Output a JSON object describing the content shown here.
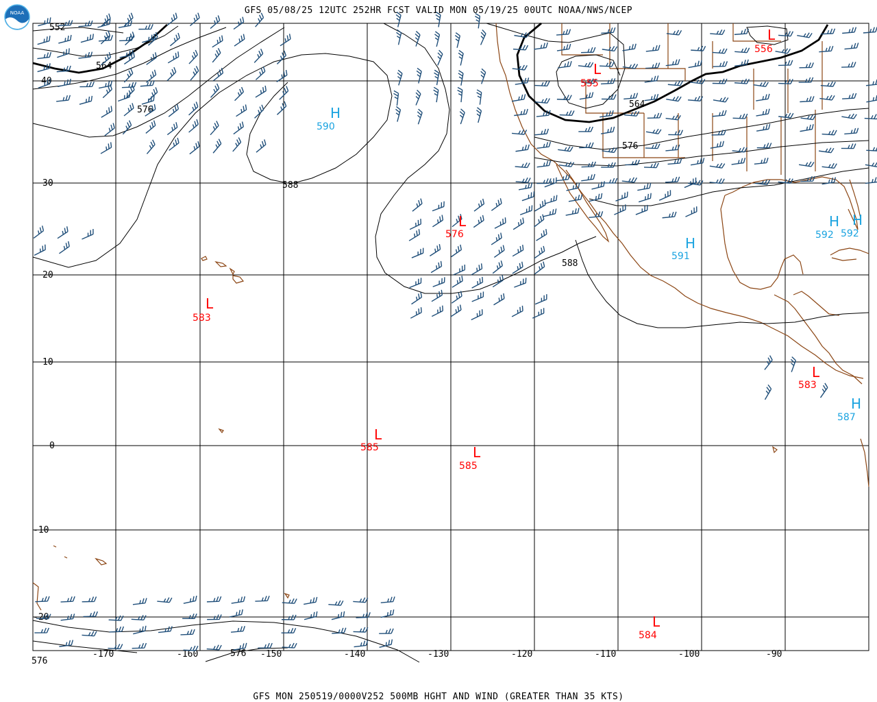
{
  "header": {
    "title": "GFS 05/08/25 12UTC 252HR FCST VALID MON 05/19/25 00UTC NOAA/NWS/NCEP",
    "footer": "GFS MON 250519/0000V252 500MB HGHT AND WIND (GREATER THAN 35 KTS)",
    "logo_text": "NOAA"
  },
  "colors": {
    "grid": "#000000",
    "contour": "#000000",
    "coast": "#8b4513",
    "barb": "#1f4e79",
    "high": "#1aa3e0",
    "low": "#ff0000"
  },
  "latitude_labels": [
    "40",
    "30",
    "20",
    "10",
    "0",
    "-10",
    "-20"
  ],
  "longitude_labels": [
    "-170",
    "-160",
    "-150",
    "-140",
    "-130",
    "-120",
    "-110",
    "-100",
    "-90"
  ],
  "contour_labels": [
    "552",
    "564",
    "576",
    "588",
    "588",
    "564",
    "576",
    "576",
    "576"
  ],
  "pressure_centers": [
    {
      "type": "H",
      "value": "590"
    },
    {
      "type": "L",
      "value": "576"
    },
    {
      "type": "L",
      "value": "583"
    },
    {
      "type": "L",
      "value": "555"
    },
    {
      "type": "L",
      "value": "556"
    },
    {
      "type": "H",
      "value": "591"
    },
    {
      "type": "H",
      "value": "592"
    },
    {
      "type": "H",
      "value": "592"
    },
    {
      "type": "L",
      "value": "583"
    },
    {
      "type": "H",
      "value": "587"
    },
    {
      "type": "L",
      "value": "585"
    },
    {
      "type": "L",
      "value": "585"
    },
    {
      "type": "L",
      "value": "584"
    }
  ]
}
